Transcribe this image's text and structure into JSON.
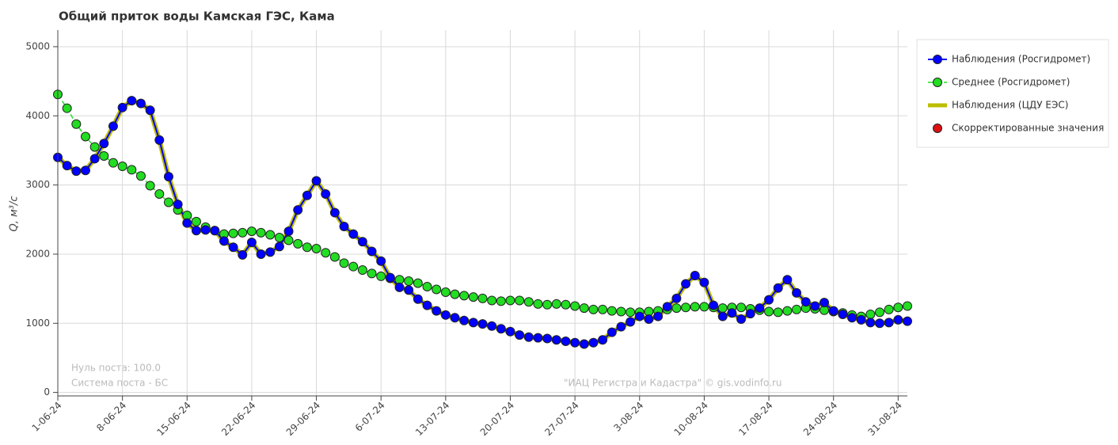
{
  "chart_data": {
    "type": "line",
    "title": "Общий приток воды Камская ГЭС,  Кама",
    "y_label": "Q, м³/с",
    "annotations": [
      "Нуль поста: 100.0",
      "Система поста - БС",
      "\"ИАЦ Регистра и Кадастра\" © gis.vodinfo.ru"
    ],
    "x": [
      "2024-06-01",
      "2024-06-02",
      "2024-06-03",
      "2024-06-04",
      "2024-06-05",
      "2024-06-06",
      "2024-06-07",
      "2024-06-08",
      "2024-06-09",
      "2024-06-10",
      "2024-06-11",
      "2024-06-12",
      "2024-06-13",
      "2024-06-14",
      "2024-06-15",
      "2024-06-16",
      "2024-06-17",
      "2024-06-18",
      "2024-06-19",
      "2024-06-20",
      "2024-06-21",
      "2024-06-22",
      "2024-06-23",
      "2024-06-24",
      "2024-06-25",
      "2024-06-26",
      "2024-06-27",
      "2024-06-28",
      "2024-06-29",
      "2024-06-30",
      "2024-07-01",
      "2024-07-02",
      "2024-07-03",
      "2024-07-04",
      "2024-07-05",
      "2024-07-06",
      "2024-07-07",
      "2024-07-08",
      "2024-07-09",
      "2024-07-10",
      "2024-07-11",
      "2024-07-12",
      "2024-07-13",
      "2024-07-14",
      "2024-07-15",
      "2024-07-16",
      "2024-07-17",
      "2024-07-18",
      "2024-07-19",
      "2024-07-20",
      "2024-07-21",
      "2024-07-22",
      "2024-07-23",
      "2024-07-24",
      "2024-07-25",
      "2024-07-26",
      "2024-07-27",
      "2024-07-28",
      "2024-07-29",
      "2024-07-30",
      "2024-07-31",
      "2024-08-01",
      "2024-08-02",
      "2024-08-03",
      "2024-08-04",
      "2024-08-05",
      "2024-08-06",
      "2024-08-07",
      "2024-08-08",
      "2024-08-09",
      "2024-08-10",
      "2024-08-11",
      "2024-08-12",
      "2024-08-13",
      "2024-08-14",
      "2024-08-15",
      "2024-08-16",
      "2024-08-17",
      "2024-08-18",
      "2024-08-19",
      "2024-08-20",
      "2024-08-21",
      "2024-08-22",
      "2024-08-23",
      "2024-08-24",
      "2024-08-25",
      "2024-08-26",
      "2024-08-27",
      "2024-08-28",
      "2024-08-29",
      "2024-08-30",
      "2024-08-31",
      "2024-09-01"
    ],
    "series": [
      {
        "name": "Наблюдения (Росгидромет)",
        "color": "#0000ff",
        "line": "solid",
        "line_width": 2,
        "marker": true,
        "values": [
          3400,
          3280,
          3200,
          3210,
          3380,
          3600,
          3850,
          4120,
          4220,
          4180,
          4080,
          3650,
          3120,
          2720,
          2450,
          2340,
          2350,
          2340,
          2190,
          2100,
          1990,
          2170,
          2000,
          2030,
          2110,
          2330,
          2640,
          2850,
          3060,
          2870,
          2600,
          2400,
          2290,
          2180,
          2040,
          1900,
          1660,
          1520,
          1480,
          1350,
          1260,
          1180,
          1120,
          1080,
          1040,
          1010,
          990,
          960,
          920,
          880,
          830,
          800,
          790,
          780,
          760,
          740,
          720,
          700,
          720,
          760,
          870,
          950,
          1020,
          1100,
          1060,
          1100,
          1240,
          1360,
          1570,
          1690,
          1590,
          1260,
          1100,
          1150,
          1060,
          1140,
          1220,
          1340,
          1510,
          1630,
          1440,
          1310,
          1250,
          1300,
          1180,
          1130,
          1080,
          1050,
          1010,
          1000,
          1010,
          1050,
          1030
        ]
      },
      {
        "name": "Среднее (Росгидромет)",
        "color": "#22dd22",
        "line": "dashed",
        "line_width": 1.5,
        "marker": true,
        "values": [
          4310,
          4110,
          3880,
          3700,
          3550,
          3420,
          3320,
          3270,
          3220,
          3130,
          2990,
          2870,
          2750,
          2640,
          2560,
          2470,
          2390,
          2340,
          2290,
          2300,
          2310,
          2330,
          2310,
          2280,
          2240,
          2200,
          2150,
          2100,
          2080,
          2020,
          1960,
          1870,
          1820,
          1770,
          1720,
          1680,
          1650,
          1630,
          1610,
          1580,
          1530,
          1490,
          1450,
          1420,
          1400,
          1380,
          1360,
          1330,
          1320,
          1330,
          1330,
          1310,
          1280,
          1270,
          1280,
          1270,
          1250,
          1220,
          1200,
          1200,
          1180,
          1170,
          1160,
          1160,
          1170,
          1180,
          1200,
          1220,
          1230,
          1240,
          1240,
          1230,
          1220,
          1230,
          1230,
          1210,
          1190,
          1170,
          1160,
          1180,
          1200,
          1220,
          1210,
          1190,
          1170,
          1150,
          1120,
          1100,
          1130,
          1160,
          1200,
          1230,
          1250
        ]
      },
      {
        "name": "Наблюдения (ЦДУ ЕЭС)",
        "color": "#bdbd00",
        "line": "solid",
        "line_width": 6,
        "marker": false,
        "values": [
          3400,
          3280,
          3200,
          3210,
          3380,
          3600,
          3850,
          4120,
          4220,
          4180,
          4080,
          3650,
          3120,
          2720,
          2450,
          2340,
          2350,
          2340,
          2190,
          2100,
          1990,
          2170,
          2000,
          2030,
          2110,
          2330,
          2640,
          2850,
          3060,
          2870,
          2600,
          2400,
          2290,
          2180,
          2040,
          1900,
          1660,
          1520,
          1480,
          1350,
          1260,
          1180,
          1120,
          1080,
          1040,
          1010,
          990,
          960,
          920,
          880,
          830,
          800,
          790,
          780,
          760,
          740,
          720,
          700,
          720,
          760,
          870,
          950,
          1020,
          1100,
          1060,
          1100,
          1240,
          1360,
          1570,
          1690,
          1590,
          1260,
          1100,
          1150,
          1060,
          1140,
          1220,
          1340,
          1510,
          1630,
          1440,
          1310,
          1250,
          1300,
          1180,
          1130,
          1080,
          1050,
          1010,
          1000,
          1010,
          1050,
          1030
        ]
      },
      {
        "name": "Скорректированные значения",
        "color": "#dd1111",
        "line": "none",
        "line_width": 0,
        "marker": true,
        "values": [
          null,
          null,
          null,
          null,
          null,
          null,
          null,
          null,
          null,
          null,
          null,
          null,
          null,
          null,
          null,
          null,
          null,
          null,
          null,
          null,
          null,
          null,
          null,
          null,
          null,
          null,
          null,
          null,
          null,
          null,
          null,
          null,
          null,
          null,
          null,
          null,
          null,
          null,
          null,
          null,
          null,
          null,
          null,
          null,
          null,
          null,
          null,
          null,
          null,
          null,
          null,
          null,
          null,
          null,
          null,
          null,
          null,
          null,
          null,
          null,
          null,
          null,
          null,
          null,
          null,
          null,
          null,
          null,
          null,
          null,
          null,
          null,
          null,
          null,
          null,
          null,
          null,
          null,
          null,
          null,
          null,
          null,
          null,
          null,
          null,
          null,
          null,
          null,
          null,
          null,
          null,
          null,
          null
        ]
      }
    ],
    "xlim": [
      "2024-06-01",
      "2024-09-01"
    ],
    "xticks": [
      {
        "value": "2024-06-01",
        "label": "1-06-24"
      },
      {
        "value": "2024-06-08",
        "label": "8-06-24"
      },
      {
        "value": "2024-06-15",
        "label": "15-06-24"
      },
      {
        "value": "2024-06-22",
        "label": "22-06-24"
      },
      {
        "value": "2024-06-29",
        "label": "29-06-24"
      },
      {
        "value": "2024-07-06",
        "label": "6-07-24"
      },
      {
        "value": "2024-07-13",
        "label": "13-07-24"
      },
      {
        "value": "2024-07-20",
        "label": "20-07-24"
      },
      {
        "value": "2024-07-27",
        "label": "27-07-24"
      },
      {
        "value": "2024-08-03",
        "label": "3-08-24"
      },
      {
        "value": "2024-08-10",
        "label": "10-08-24"
      },
      {
        "value": "2024-08-17",
        "label": "17-08-24"
      },
      {
        "value": "2024-08-24",
        "label": "24-08-24"
      },
      {
        "value": "2024-08-31",
        "label": "31-08-24"
      }
    ],
    "ylim": [
      -50,
      5240
    ],
    "yticks": [
      0,
      1000,
      2000,
      3000,
      4000,
      5000
    ],
    "grid": true,
    "legend": "right"
  }
}
